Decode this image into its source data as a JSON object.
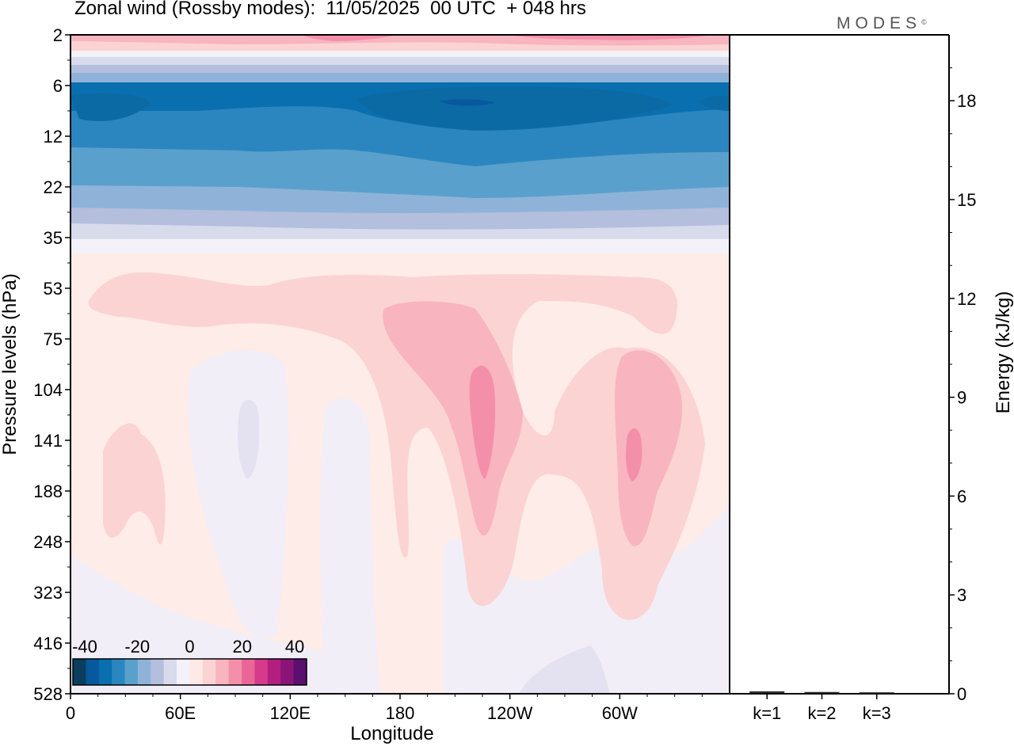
{
  "title": "Zonal wind (Rossby modes):  11/05/2025  00 UTC  + 048 hrs",
  "logo": "MODES",
  "logo_mark": "©",
  "chart_data": [
    {
      "type": "heatmap",
      "title": "Zonal wind (Rossby modes):  11/05/2025  00 UTC  + 048 hrs",
      "xlabel": "Longitude",
      "ylabel": "Pressure levels (hPa)",
      "x_ticks": [
        "0",
        "60E",
        "120E",
        "180",
        "120W",
        "60W"
      ],
      "x_range_deg_east": [
        0,
        360
      ],
      "y_ticks": [
        "2",
        "6",
        "12",
        "22",
        "35",
        "53",
        "75",
        "104",
        "141",
        "188",
        "248",
        "323",
        "416",
        "528"
      ],
      "y_scale": "level-index",
      "colorbar": {
        "tick_labels": [
          "-40",
          "-20",
          "0",
          "20",
          "40"
        ],
        "colors": [
          "#0b3d5c",
          "#08589e",
          "#0a6fae",
          "#2b86c0",
          "#5aa0cc",
          "#8fb3d8",
          "#b4bedd",
          "#d8dbec",
          "#f3f2f8",
          "#fde9e6",
          "#fbd3d3",
          "#f8b4bf",
          "#f48faa",
          "#ea6699",
          "#d63a8a",
          "#b21f7e",
          "#8a1577",
          "#5b0f6e"
        ]
      },
      "fields": [
        {
          "level_band": [
            2,
            5
          ],
          "wind": [
            10,
            20
          ],
          "description": "positive band near top"
        },
        {
          "level_band": [
            6,
            15
          ],
          "wind": [
            -40,
            -25
          ],
          "description": "strong easterlies"
        },
        {
          "level_band": [
            16,
            30
          ],
          "wind": [
            -25,
            -10
          ]
        },
        {
          "level_band": [
            35,
            528
          ],
          "wind": [
            -5,
            20
          ]
        }
      ]
    },
    {
      "type": "bar",
      "categories": [
        "k=1",
        "k=2",
        "k=3"
      ],
      "values": [
        0.05,
        0.03,
        0.02
      ],
      "ylabel": "Energy (kJ/kg)",
      "ylim": [
        0,
        20
      ],
      "y_ticks": [
        "0",
        "3",
        "6",
        "9",
        "12",
        "15",
        "18"
      ]
    }
  ]
}
